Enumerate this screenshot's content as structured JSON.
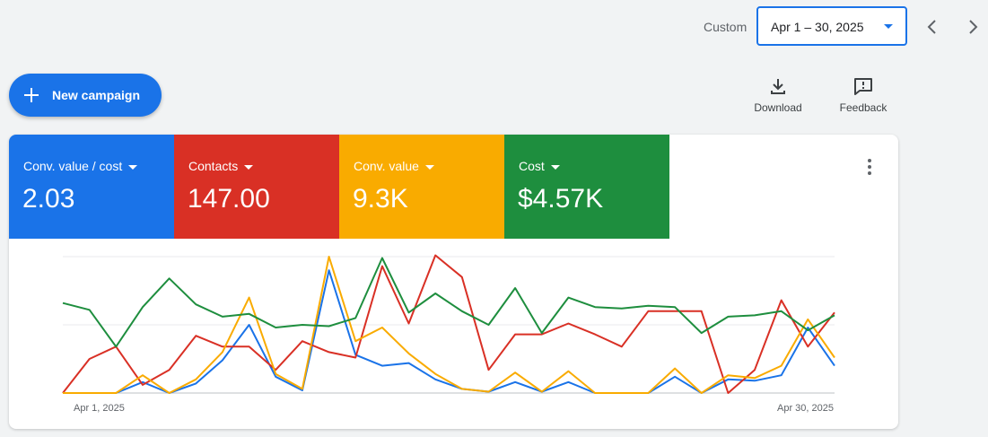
{
  "date_range": {
    "prefix": "Custom",
    "value": "Apr 1 – 30, 2025",
    "prev_icon": "chevron-left-icon",
    "next_icon": "chevron-right-icon"
  },
  "actions": {
    "new_campaign": "New campaign",
    "download": "Download",
    "feedback": "Feedback"
  },
  "metrics": [
    {
      "name": "Conv. value / cost",
      "value": "2.03",
      "color": "#1a73e8"
    },
    {
      "name": "Contacts",
      "value": "147.00",
      "color": "#d93025"
    },
    {
      "name": "Conv. value",
      "value": "9.3K",
      "color": "#f9ab00"
    },
    {
      "name": "Cost",
      "value": "$4.57K",
      "color": "#1e8e3e"
    }
  ],
  "chart_data": {
    "type": "line",
    "x_start_label": "Apr 1, 2025",
    "x_end_label": "Apr 30, 2025",
    "x": [
      1,
      2,
      3,
      4,
      5,
      6,
      7,
      8,
      9,
      10,
      11,
      12,
      13,
      14,
      15,
      16,
      17,
      18,
      19,
      20,
      21,
      22,
      23,
      24,
      25,
      26,
      27,
      28,
      29,
      30
    ],
    "ylim": [
      0,
      100
    ],
    "grid": true,
    "series": [
      {
        "name": "Conv. value / cost",
        "color": "#1a73e8",
        "values": [
          0,
          0,
          0,
          8,
          0,
          7,
          24,
          50,
          12,
          2,
          90,
          28,
          20,
          22,
          10,
          3,
          1,
          8,
          1,
          8,
          0,
          0,
          0,
          12,
          0,
          10,
          9,
          13,
          48,
          20
        ]
      },
      {
        "name": "Contacts",
        "color": "#d93025",
        "values": [
          0,
          25,
          34,
          6,
          17,
          42,
          34,
          34,
          17,
          38,
          30,
          26,
          93,
          51,
          101,
          85,
          17,
          43,
          43,
          51,
          43,
          34,
          60,
          60,
          60,
          0,
          17,
          68,
          34,
          59
        ]
      },
      {
        "name": "Conv. value",
        "color": "#f9ab00",
        "values": [
          0,
          0,
          0,
          13,
          0,
          10,
          30,
          70,
          14,
          3,
          100,
          38,
          48,
          29,
          14,
          3,
          1,
          15,
          1,
          16,
          0,
          0,
          0,
          18,
          0,
          13,
          11,
          20,
          54,
          26
        ]
      },
      {
        "name": "Cost",
        "color": "#1e8e3e",
        "values": [
          66,
          61,
          34,
          63,
          84,
          65,
          56,
          58,
          48,
          50,
          49,
          55,
          99,
          59,
          73,
          60,
          50,
          77,
          44,
          70,
          63,
          62,
          64,
          63,
          44,
          56,
          57,
          60,
          46,
          57
        ]
      }
    ]
  }
}
